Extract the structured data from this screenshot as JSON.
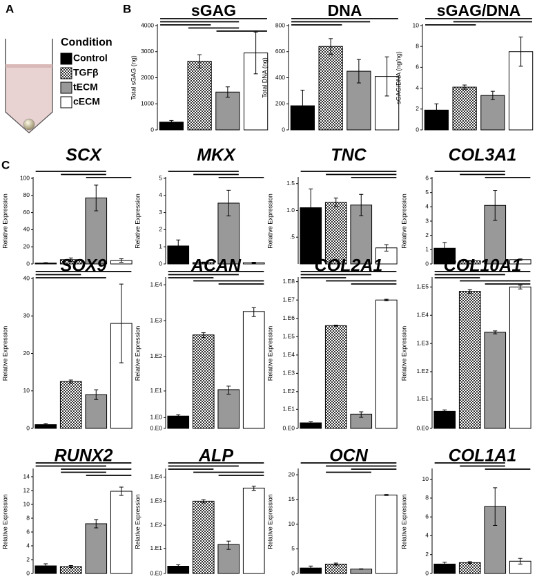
{
  "panel_labels": [
    "A",
    "B",
    "C"
  ],
  "legend": {
    "title": "Condition",
    "entries": [
      "Control",
      "TGFβ",
      "tECM",
      "cECM"
    ],
    "fills": [
      "#000000",
      "checker",
      "#999999",
      "#ffffff"
    ]
  },
  "chart_data": [
    {
      "type": "bar",
      "title": "sGAG",
      "y_label": "Total sGAG (ng)",
      "values": [
        300,
        2630,
        1450,
        2950
      ],
      "errors": [
        60,
        250,
        200,
        800
      ],
      "ylim": [
        0,
        4000
      ],
      "yticks": [
        0,
        1000,
        2000,
        3000,
        4000
      ],
      "log_scale": false,
      "significance": [
        [
          0,
          3
        ],
        [
          0,
          2
        ],
        [
          0,
          1
        ],
        [
          1,
          2
        ],
        [
          2,
          3
        ]
      ]
    },
    {
      "type": "bar",
      "title": "DNA",
      "y_label": "Total DNA (ng)",
      "values": [
        185,
        640,
        450,
        410
      ],
      "errors": [
        120,
        60,
        90,
        150
      ],
      "ylim": [
        0,
        800
      ],
      "yticks": [
        0,
        200,
        400,
        600,
        800
      ],
      "log_scale": false,
      "significance": [
        [
          0,
          3
        ],
        [
          0,
          2
        ],
        [
          0,
          1
        ]
      ]
    },
    {
      "type": "bar",
      "title": "sGAG/DNA",
      "y_label": "sGAG/DNA (ng/ng)",
      "values": [
        1.9,
        4.1,
        3.3,
        7.5
      ],
      "errors": [
        0.6,
        0.2,
        0.4,
        1.4
      ],
      "ylim": [
        0,
        10
      ],
      "yticks": [
        0,
        2,
        4,
        6,
        8,
        10
      ],
      "log_scale": false,
      "significance": [
        [
          0,
          3
        ],
        [
          1,
          3
        ],
        [
          0,
          1
        ]
      ]
    },
    {
      "type": "bar",
      "title": "SCX",
      "y_label": "Relative Expression",
      "values": [
        1,
        5,
        77,
        4
      ],
      "errors": [
        0.5,
        2,
        15,
        2
      ],
      "ylim": [
        0,
        100
      ],
      "yticks": [
        0,
        20,
        40,
        60,
        80,
        100
      ],
      "log_scale": false,
      "significance": [
        [
          0,
          2
        ],
        [
          1,
          2
        ],
        [
          2,
          3
        ]
      ]
    },
    {
      "type": "bar",
      "title": "MKX",
      "y_label": "Relative Expression",
      "values": [
        1.05,
        0.08,
        3.55,
        0.07
      ],
      "errors": [
        0.35,
        0.03,
        0.75,
        0.03
      ],
      "ylim": [
        0,
        5
      ],
      "yticks": [
        0,
        1,
        2,
        3,
        4,
        5
      ],
      "log_scale": false,
      "significance": [
        [
          0,
          2
        ],
        [
          1,
          2
        ],
        [
          2,
          3
        ]
      ]
    },
    {
      "type": "bar",
      "title": "TNC",
      "y_label": "Relative Expression",
      "values": [
        1.05,
        1.15,
        1.1,
        0.3
      ],
      "errors": [
        0.35,
        0.08,
        0.2,
        0.06
      ],
      "ylim": [
        0,
        1.6
      ],
      "yticks": [
        {
          "value": 0.5,
          "label": ".5"
        },
        {
          "value": 1,
          "label": "1.0"
        },
        1.5
      ],
      "log_scale": false,
      "significance": [
        [
          0,
          3
        ],
        [
          1,
          3
        ],
        [
          2,
          3
        ]
      ]
    },
    {
      "type": "bar",
      "title": "COL3A1",
      "y_label": "Relative Expression",
      "values": [
        1.1,
        0.22,
        4.1,
        0.3
      ],
      "errors": [
        0.4,
        0.02,
        1.05,
        0.05
      ],
      "ylim": [
        0,
        6
      ],
      "yticks": [
        0,
        1,
        2,
        3,
        4,
        5,
        6
      ],
      "log_scale": false,
      "significance": [
        [
          0,
          2
        ],
        [
          1,
          2
        ],
        [
          2,
          3
        ]
      ]
    },
    {
      "type": "bar",
      "title": "SOX9",
      "y_label": "Relative Expression",
      "values": [
        1,
        12.5,
        9,
        28
      ],
      "errors": [
        0.3,
        0.4,
        1.3,
        10.5
      ],
      "ylim": [
        0,
        40
      ],
      "yticks": [
        0,
        10,
        20,
        30,
        40
      ],
      "log_scale": false,
      "significance": [
        [
          0,
          3
        ],
        [
          0,
          1
        ],
        [
          0,
          2
        ]
      ]
    },
    {
      "type": "bar",
      "title": "ACAN",
      "y_label": "Relative Expression",
      "values": [
        1.2,
        400,
        11,
        1800
      ],
      "errors": [
        0.2,
        60,
        3,
        500
      ],
      "ylim": [
        0,
        15000
      ],
      "yticks": [
        {
          "value": 0,
          "label": "0.E0"
        },
        {
          "value": 1,
          "label": "1.E0"
        },
        {
          "value": 10,
          "label": "1.E1"
        },
        {
          "value": 100,
          "label": "1.E2"
        },
        {
          "value": 1000,
          "label": "1.E3"
        },
        {
          "value": 10000,
          "label": "1.E4"
        }
      ],
      "log_scale": true,
      "significance": [
        [
          0,
          3
        ],
        [
          0,
          2
        ],
        [
          0,
          1
        ],
        [
          1,
          3
        ],
        [
          2,
          3
        ]
      ]
    },
    {
      "type": "bar",
      "title": "COL2A1",
      "y_label": "Relative Expression",
      "values": [
        1,
        400000,
        5,
        10000000
      ],
      "errors": [
        0.3,
        30000,
        2,
        1000000
      ],
      "ylim": [
        0,
        150000000
      ],
      "yticks": [
        {
          "value": 0,
          "label": "0.E0"
        },
        {
          "value": 10,
          "label": "1.E1"
        },
        {
          "value": 100,
          "label": "1.E2"
        },
        {
          "value": 1000,
          "label": "1.E3"
        },
        {
          "value": 10000,
          "label": "1.E4"
        },
        {
          "value": 100000,
          "label": "1.E5"
        },
        {
          "value": 1000000,
          "label": "1.E6"
        },
        {
          "value": 10000000,
          "label": "1.E7"
        },
        {
          "value": 100000000,
          "label": "1.E8"
        }
      ],
      "log_scale": true,
      "significance": [
        [
          0,
          3
        ],
        [
          0,
          2
        ],
        [
          0,
          1
        ],
        [
          1,
          3
        ],
        [
          2,
          3
        ]
      ]
    },
    {
      "type": "bar",
      "title": "COL10A1",
      "y_label": "Relative Expression",
      "values": [
        3,
        70000,
        2500,
        100000
      ],
      "errors": [
        0.5,
        10000,
        300,
        15000
      ],
      "ylim": [
        0,
        200000
      ],
      "yticks": [
        {
          "value": 0,
          "label": "0.E0"
        },
        {
          "value": 10,
          "label": "1.E1"
        },
        {
          "value": 100,
          "label": "1.E2"
        },
        {
          "value": 1000,
          "label": "1.E3"
        },
        {
          "value": 10000,
          "label": "1.E4"
        },
        {
          "value": 100000,
          "label": "1.E5"
        }
      ],
      "log_scale": true,
      "significance": [
        [
          0,
          3
        ],
        [
          0,
          2
        ],
        [
          0,
          1
        ],
        [
          1,
          3
        ],
        [
          2,
          3
        ]
      ]
    },
    {
      "type": "bar",
      "title": "RUNX2",
      "y_label": "Relative Expression",
      "values": [
        1.1,
        1,
        7.2,
        11.9
      ],
      "errors": [
        0.3,
        0.15,
        0.6,
        0.6
      ],
      "ylim": [
        0,
        15
      ],
      "yticks": [
        0,
        2,
        4,
        6,
        8,
        10,
        12,
        14
      ],
      "log_scale": false,
      "significance": [
        [
          0,
          3
        ],
        [
          0,
          2
        ],
        [
          1,
          3
        ],
        [
          1,
          2
        ],
        [
          2,
          3
        ]
      ]
    },
    {
      "type": "bar",
      "title": "ALP",
      "y_label": "Relative Expression",
      "values": [
        1,
        1000,
        15,
        3500
      ],
      "errors": [
        0.3,
        150,
        6,
        700
      ],
      "ylim": [
        0,
        20000
      ],
      "yticks": [
        {
          "value": 0,
          "label": "0.E0"
        },
        {
          "value": 10,
          "label": "1.E1"
        },
        {
          "value": 100,
          "label": "1.E2"
        },
        {
          "value": 1000,
          "label": "1.E3"
        },
        {
          "value": 10000,
          "label": "1.E4"
        }
      ],
      "log_scale": true,
      "significance": [
        [
          0,
          3
        ],
        [
          0,
          2
        ],
        [
          0,
          1
        ],
        [
          1,
          3
        ],
        [
          2,
          3
        ]
      ]
    },
    {
      "type": "bar",
      "title": "OCN",
      "y_label": "Relative Expression",
      "values": [
        1.1,
        1.9,
        0.9,
        15.9
      ],
      "errors": [
        0.4,
        0.2,
        0.05,
        0.1
      ],
      "ylim": [
        0,
        21
      ],
      "yticks": [
        0,
        5,
        10,
        15,
        20
      ],
      "log_scale": false,
      "significance": [
        [
          0,
          3
        ],
        [
          1,
          3
        ],
        [
          2,
          3
        ],
        [
          1,
          2
        ]
      ]
    },
    {
      "type": "bar",
      "title": "COL1A1",
      "y_label": "Relative Expression",
      "values": [
        1,
        1.15,
        7.1,
        1.3
      ],
      "errors": [
        0.2,
        0.1,
        2,
        0.3
      ],
      "ylim": [
        0,
        11
      ],
      "yticks": [
        0,
        2,
        4,
        6,
        8,
        10
      ],
      "log_scale": false,
      "significance": [
        [
          0,
          2
        ],
        [
          1,
          2
        ],
        [
          2,
          3
        ]
      ]
    }
  ]
}
